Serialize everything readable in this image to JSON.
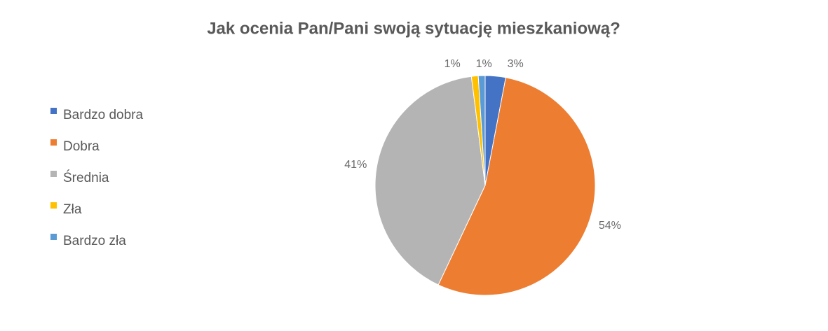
{
  "chart_data": {
    "type": "pie",
    "title": "Jak ocenia Pan/Pani swoją sytuację mieszkaniową?",
    "categories": [
      "Bardzo dobra",
      "Dobra",
      "Średnia",
      "Zła",
      "Bardzo zła"
    ],
    "values": [
      3,
      54,
      41,
      1,
      1
    ],
    "value_labels": [
      "3%",
      "54%",
      "41%",
      "1%",
      "1%"
    ],
    "colors": [
      "#4472c4",
      "#ed7d31",
      "#b4b4b4",
      "#ffc000",
      "#5b9bd5"
    ],
    "legend": "left"
  }
}
